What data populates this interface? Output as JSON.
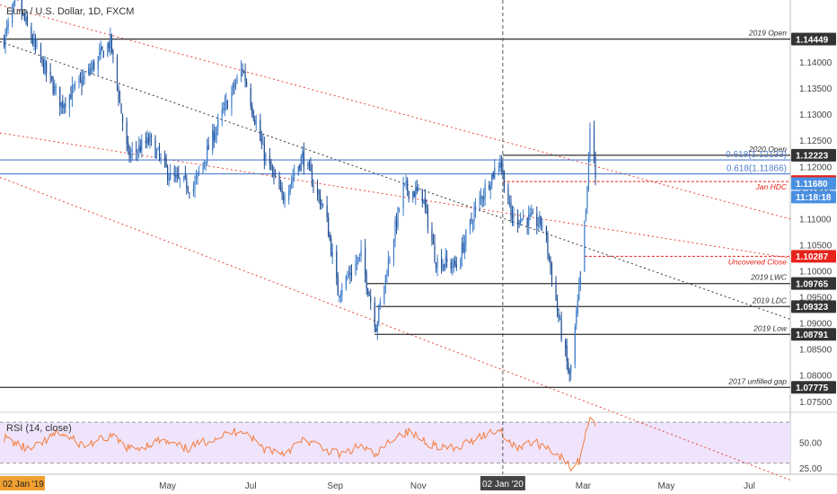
{
  "chart_data": {
    "type": "candlestick",
    "title": "Euro / U.S. Dollar, 1D, FXCM",
    "ylim": [
      1.0735,
      1.1475
    ],
    "x_range": [
      "2018-12-29",
      "2020-07-31"
    ],
    "y_axis_ticks": [
      "1.14000",
      "1.13500",
      "1.13000",
      "1.12500",
      "1.12000",
      "1.11500",
      "1.11000",
      "1.10500",
      "1.10000",
      "1.09500",
      "1.09000",
      "1.08500",
      "1.08000",
      "1.07500"
    ],
    "x_axis_ticks": [
      {
        "label": "May",
        "date": "2019-05-01"
      },
      {
        "label": "Jul",
        "date": "2019-07-01"
      },
      {
        "label": "Sep",
        "date": "2019-09-01"
      },
      {
        "label": "Nov",
        "date": "2019-11-01"
      },
      {
        "label": "Mar",
        "date": "2020-03-01"
      },
      {
        "label": "May",
        "date": "2020-05-01"
      },
      {
        "label": "Jul",
        "date": "2020-07-01"
      }
    ],
    "x_axis_start_label": "02 Jan '19",
    "x_axis_cursor_label": "02 Jan '20",
    "cursor_date": "2020-01-02",
    "up_color": "#3d7cc9",
    "down_color": "#1f4e96",
    "price_anchors": [
      [
        "2019-01-01",
        1.1445
      ],
      [
        "2019-01-10",
        1.152
      ],
      [
        "2019-01-25",
        1.142
      ],
      [
        "2019-02-12",
        1.132
      ],
      [
        "2019-03-01",
        1.137
      ],
      [
        "2019-03-20",
        1.144
      ],
      [
        "2019-04-02",
        1.122
      ],
      [
        "2019-04-18",
        1.125
      ],
      [
        "2019-05-03",
        1.118
      ],
      [
        "2019-05-20",
        1.116
      ],
      [
        "2019-06-05",
        1.127
      ],
      [
        "2019-06-25",
        1.139
      ],
      [
        "2019-07-10",
        1.123
      ],
      [
        "2019-07-24",
        1.114
      ],
      [
        "2019-08-08",
        1.122
      ],
      [
        "2019-08-25",
        1.111
      ],
      [
        "2019-09-03",
        1.096
      ],
      [
        "2019-09-20",
        1.103
      ],
      [
        "2019-10-01",
        1.0895
      ],
      [
        "2019-10-11",
        1.103
      ],
      [
        "2019-10-21",
        1.116
      ],
      [
        "2019-11-04",
        1.1145
      ],
      [
        "2019-11-14",
        1.102
      ],
      [
        "2019-11-29",
        1.101
      ],
      [
        "2019-12-13",
        1.112
      ],
      [
        "2019-12-31",
        1.1215
      ],
      [
        "2020-01-08",
        1.1105
      ],
      [
        "2020-01-20",
        1.11
      ],
      [
        "2020-02-01",
        1.109
      ],
      [
        "2020-02-12",
        1.091
      ],
      [
        "2020-02-20",
        1.0795
      ],
      [
        "2020-02-27",
        1.096
      ],
      [
        "2020-03-04",
        1.115
      ],
      [
        "2020-03-06",
        1.128
      ],
      [
        "2020-03-10",
        1.118
      ]
    ],
    "rsi": {
      "label": "RSI (14, close)",
      "ylim": [
        20,
        78
      ],
      "ticks": [
        "50.00",
        "25.00"
      ],
      "levels": [
        70,
        30
      ],
      "line_color": "#f57c3c",
      "band_color": "#efe4fb",
      "anchors": [
        [
          "2019-01-01",
          55
        ],
        [
          "2019-01-20",
          42
        ],
        [
          "2019-02-10",
          60
        ],
        [
          "2019-03-01",
          47
        ],
        [
          "2019-03-20",
          56
        ],
        [
          "2019-04-05",
          43
        ],
        [
          "2019-04-25",
          52
        ],
        [
          "2019-05-15",
          44
        ],
        [
          "2019-06-05",
          55
        ],
        [
          "2019-06-25",
          63
        ],
        [
          "2019-07-10",
          45
        ],
        [
          "2019-07-25",
          40
        ],
        [
          "2019-08-10",
          53
        ],
        [
          "2019-08-25",
          43
        ],
        [
          "2019-09-05",
          38
        ],
        [
          "2019-09-20",
          47
        ],
        [
          "2019-10-01",
          37
        ],
        [
          "2019-10-15",
          57
        ],
        [
          "2019-10-25",
          60
        ],
        [
          "2019-11-10",
          49
        ],
        [
          "2019-11-28",
          43
        ],
        [
          "2019-12-15",
          56
        ],
        [
          "2019-12-31",
          63
        ],
        [
          "2020-01-10",
          46
        ],
        [
          "2020-01-25",
          50
        ],
        [
          "2020-02-05",
          45
        ],
        [
          "2020-02-15",
          34
        ],
        [
          "2020-02-21",
          25
        ],
        [
          "2020-02-27",
          32
        ],
        [
          "2020-03-03",
          60
        ],
        [
          "2020-03-06",
          77
        ],
        [
          "2020-03-10",
          69
        ]
      ]
    },
    "horizontal_levels": [
      {
        "price": 1.14449,
        "label": "2019 Open",
        "price_label": "1.14449",
        "color": "#444444",
        "start": "2018-12-29",
        "label_color": "#333333"
      },
      {
        "price": 1.12223,
        "label": "2020 Open",
        "price_label": "1.12223",
        "color": "#444444",
        "start": "2020-01-02",
        "label_color": "#333333"
      },
      {
        "price": 1.09765,
        "label": "2019 LWC",
        "price_label": "1.09765",
        "color": "#444444",
        "start": "2019-09-24",
        "label_color": "#333333"
      },
      {
        "price": 1.09323,
        "label": "2019 LDC",
        "price_label": "1.09323",
        "color": "#444444",
        "start": "2019-10-01",
        "label_color": "#333333"
      },
      {
        "price": 1.08791,
        "label": "2019 Low",
        "price_label": "1.08791",
        "color": "#444444",
        "start": "2019-09-30",
        "label_color": "#333333"
      },
      {
        "price": 1.07775,
        "label": "2017 unfilled gap",
        "price_label": "1.07775",
        "color": "#444444",
        "start": "2018-12-29",
        "label_color": "#333333"
      }
    ],
    "fib_levels": [
      {
        "price": 1.12133,
        "label": "0.618(1.12133)",
        "color": "#4f7fcf"
      },
      {
        "price": 1.11866,
        "label": "0.618(1.11866)",
        "color": "#4f7fcf"
      }
    ],
    "red_levels": [
      {
        "price": 1.1172,
        "label": "Jan HDC",
        "start": "2020-01-02"
      },
      {
        "price": 1.10287,
        "label": "Uncovered Close",
        "start": "2020-03-02"
      }
    ],
    "price_badges": [
      {
        "value": "1.12223",
        "bg": "#333333",
        "fg": "#ffffff"
      },
      {
        "value": "1.11720",
        "bg": "#e8231c",
        "fg": "#ffffff"
      },
      {
        "value": "1.11680",
        "bg": "#4a90e2",
        "fg": "#ffffff"
      },
      {
        "value": "11:18:18",
        "bg": "#4a90e2",
        "fg": "#ffffff"
      },
      {
        "value": "1.10287",
        "bg": "#e8231c",
        "fg": "#ffffff"
      },
      {
        "value": "1.09765",
        "bg": "#333333",
        "fg": "#ffffff"
      },
      {
        "value": "1.09323",
        "bg": "#333333",
        "fg": "#ffffff"
      },
      {
        "value": "1.08791",
        "bg": "#333333",
        "fg": "#ffffff"
      },
      {
        "value": "1.07775",
        "bg": "#333333",
        "fg": "#ffffff"
      },
      {
        "value": "1.14449",
        "bg": "#333333",
        "fg": "#ffffff"
      }
    ],
    "channel_lines": [
      {
        "p1": [
          "2018-12-29",
          1.151
        ],
        "p2": [
          "2020-07-31",
          1.11
        ],
        "style": "dotted",
        "color": "#e8463c"
      },
      {
        "p1": [
          "2018-12-29",
          1.1265
        ],
        "p2": [
          "2020-07-31",
          1.1025
        ],
        "style": "dotted",
        "color": "#e8463c"
      },
      {
        "p1": [
          "2018-12-29",
          1.118
        ],
        "p2": [
          "2020-07-31",
          1.06
        ],
        "style": "dotted",
        "color": "#e8463c"
      },
      {
        "p1": [
          "2018-12-29",
          1.144
        ],
        "p2": [
          "2020-07-31",
          1.0908
        ],
        "style": "dotted",
        "color": "#333333"
      }
    ]
  }
}
